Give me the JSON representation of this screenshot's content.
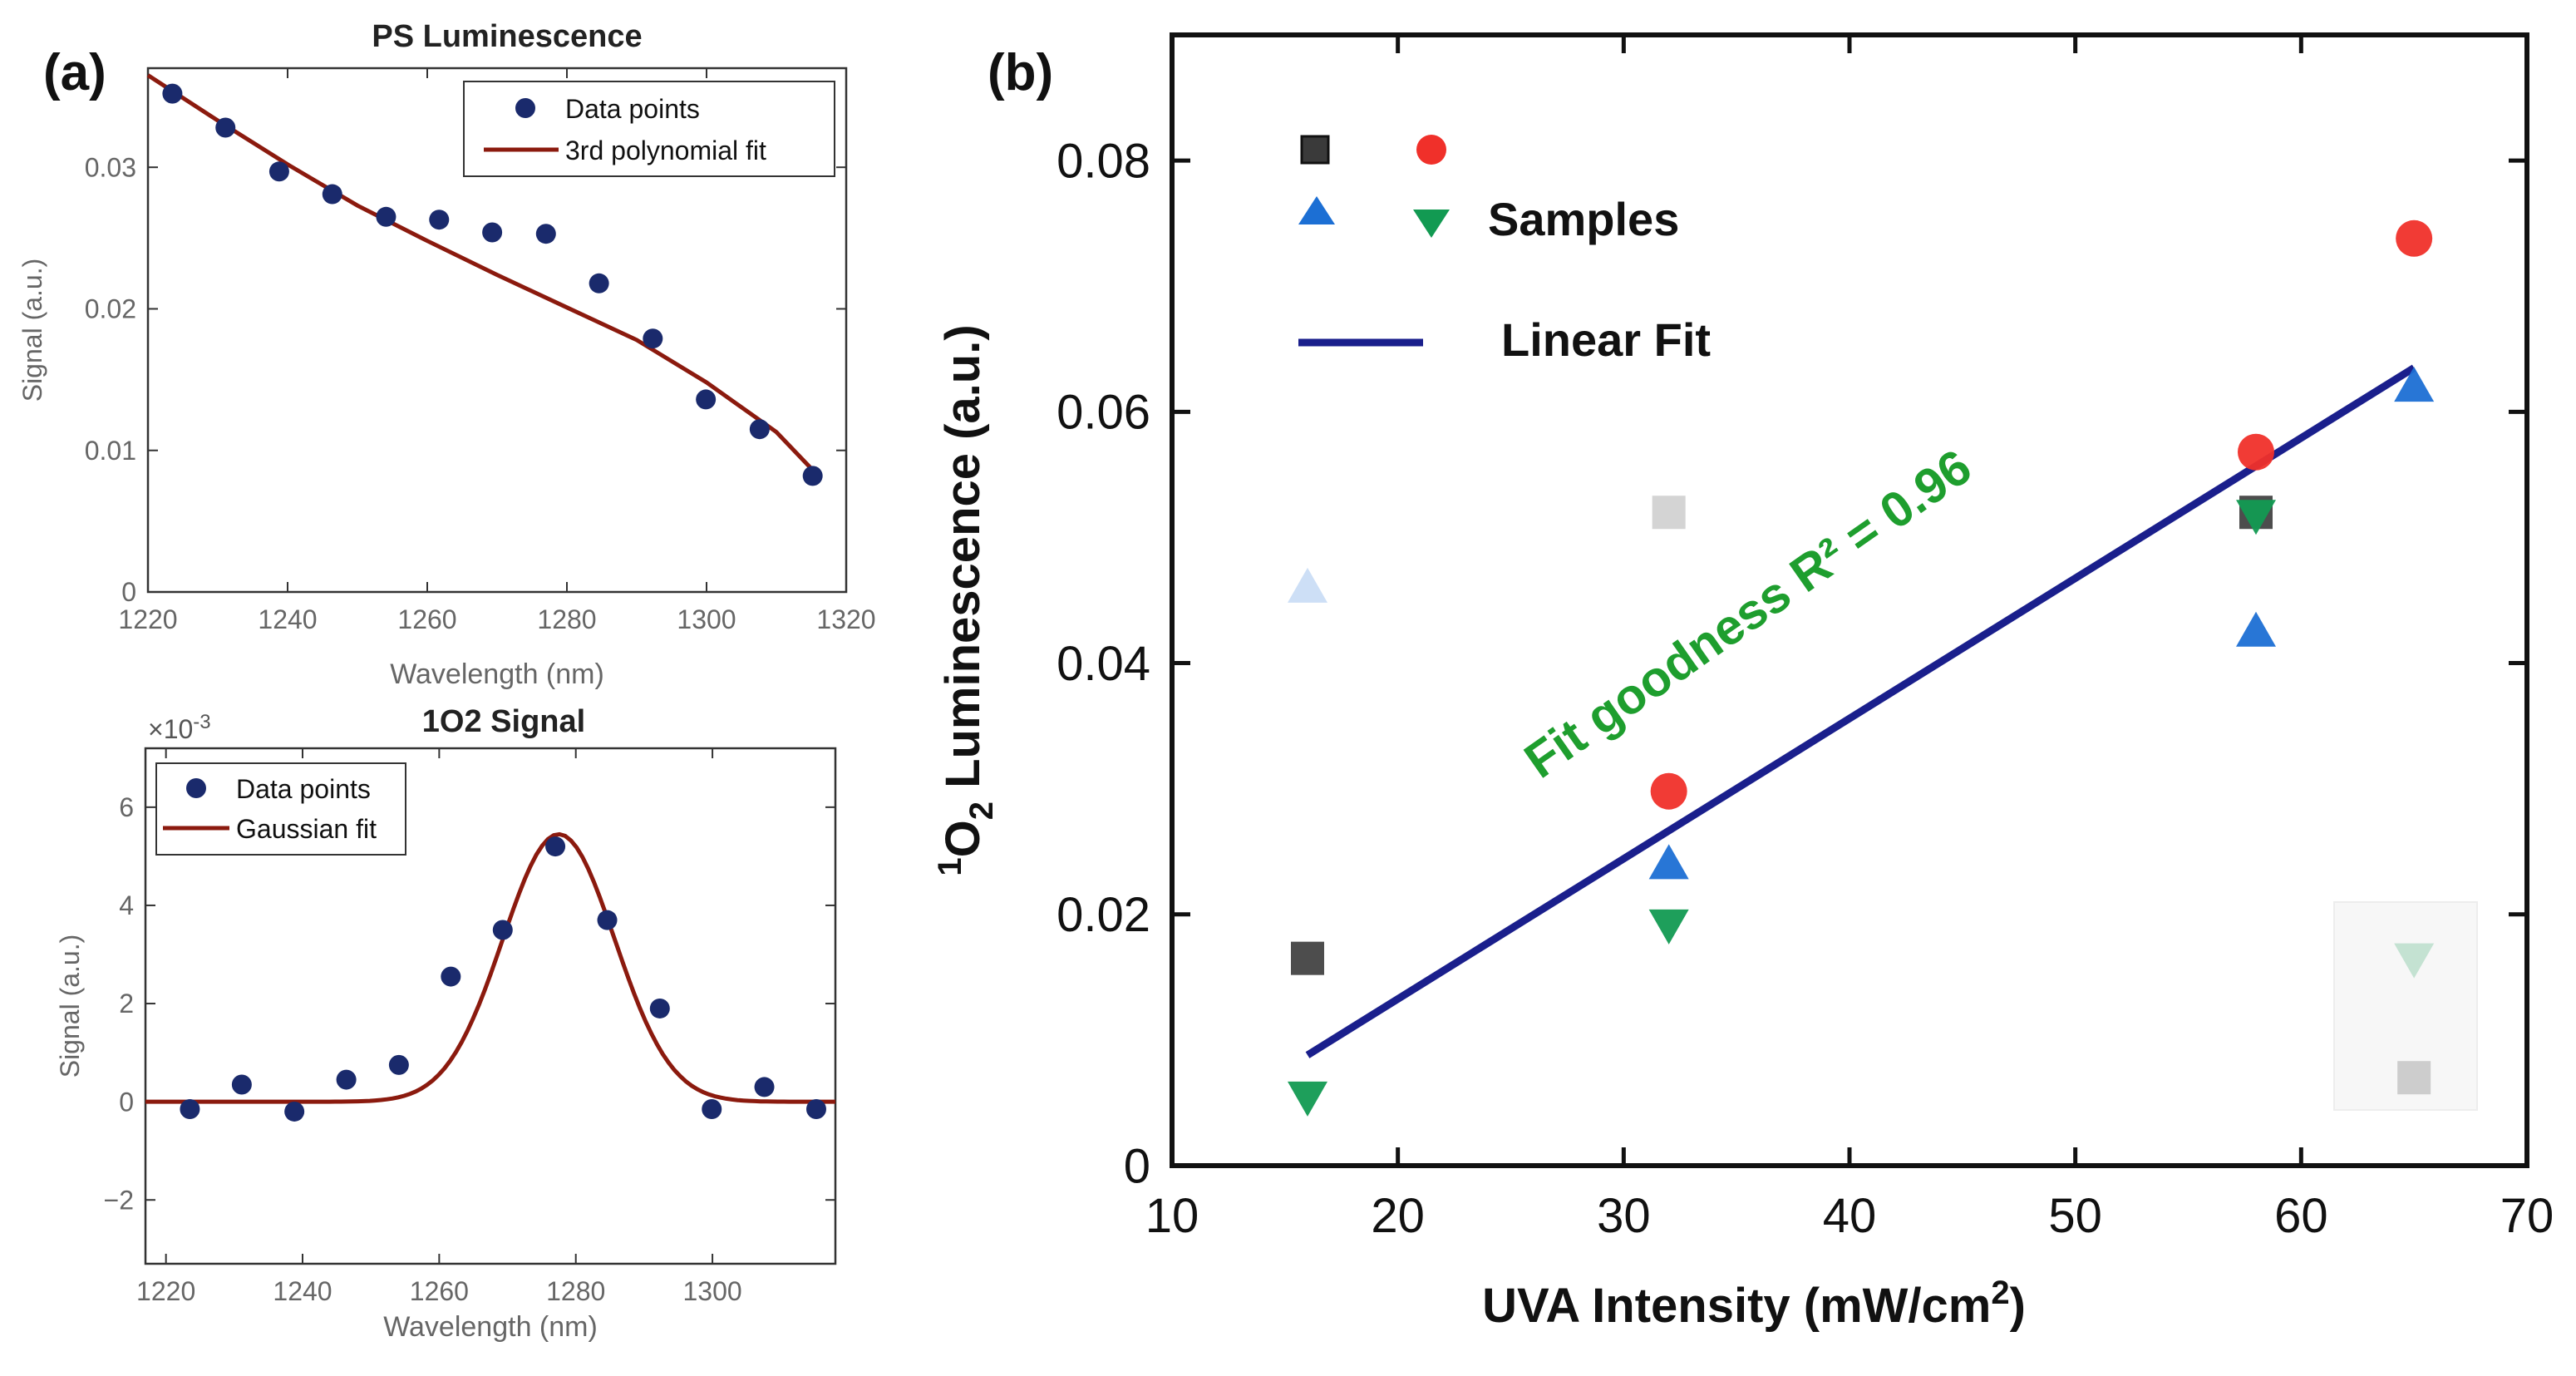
{
  "panel_labels": {
    "a": "(a)",
    "b": "(b)"
  },
  "chart_data": [
    {
      "id": "ps",
      "type": "scatter",
      "title": "PS Luminescence",
      "xlabel": "Wavelength (nm)",
      "ylabel": "Signal (a.u.)",
      "xlim": [
        1220,
        1320
      ],
      "ylim": [
        0,
        0.037
      ],
      "xticks": [
        1220,
        1240,
        1260,
        1280,
        1300,
        1320
      ],
      "yticks": [
        0,
        0.01,
        0.02,
        0.03
      ],
      "ytick_labels": [
        "0",
        "0.01",
        "0.02",
        "0.03"
      ],
      "legend_position": "top-right",
      "legend": [
        "Data points",
        "3rd polynomial fit"
      ],
      "points": {
        "x": [
          1223.5,
          1231.1,
          1238.8,
          1246.4,
          1254.1,
          1261.7,
          1269.3,
          1277.0,
          1284.6,
          1292.3,
          1299.9,
          1307.6,
          1315.2
        ],
        "y": [
          0.0352,
          0.0328,
          0.0297,
          0.0281,
          0.0265,
          0.0263,
          0.0254,
          0.0253,
          0.0218,
          0.0179,
          0.0136,
          0.0115,
          0.0082
        ]
      },
      "fit": {
        "x": [
          1220,
          1230,
          1240,
          1250,
          1260,
          1270,
          1280,
          1290,
          1300,
          1310,
          1316
        ],
        "y": [
          0.0365,
          0.0333,
          0.0302,
          0.0273,
          0.0248,
          0.0224,
          0.0201,
          0.0178,
          0.0148,
          0.0113,
          0.0082
        ]
      }
    },
    {
      "id": "o2",
      "type": "scatter",
      "title": "1O2 Signal",
      "xlabel": "Wavelength (nm)",
      "ylabel": "Signal (a.u.)",
      "exponent_label": "×10",
      "exponent_power": "-3",
      "xlim": [
        1217,
        1318
      ],
      "ylim": [
        -3.3,
        7.2
      ],
      "xticks": [
        1220,
        1240,
        1260,
        1280,
        1300
      ],
      "yticks": [
        -2,
        0,
        2,
        4,
        6
      ],
      "ytick_labels": [
        "−2",
        "0",
        "2",
        "4",
        "6"
      ],
      "legend_position": "top-left",
      "legend": [
        "Data points",
        "Gaussian fit"
      ],
      "points": {
        "x": [
          1223.5,
          1231.1,
          1238.8,
          1246.4,
          1254.1,
          1261.7,
          1269.3,
          1277.0,
          1284.6,
          1292.3,
          1299.9,
          1307.6,
          1315.2
        ],
        "y": [
          -0.15,
          0.35,
          -0.2,
          0.45,
          0.75,
          2.55,
          3.5,
          5.2,
          3.7,
          1.9,
          -0.15,
          0.3,
          -0.15
        ]
      },
      "fit": {
        "amplitude": 5.45,
        "center": 1277.5,
        "sigma": 8.2,
        "x_start": 1217,
        "x_end": 1318
      }
    },
    {
      "id": "uva",
      "type": "scatter",
      "xlabel": "UVA Intensity (mW/cm",
      "xlabel_sup": "2",
      "xlabel_end": ")",
      "ylabel_sup": "1",
      "ylabel_main": "O",
      "ylabel_sub": "2",
      "ylabel_rest": " Luminescence (a.u.)",
      "xlim": [
        10,
        70
      ],
      "ylim": [
        0,
        0.09
      ],
      "xticks": [
        10,
        20,
        30,
        40,
        50,
        60,
        70
      ],
      "yticks": [
        0,
        0.02,
        0.04,
        0.06,
        0.08
      ],
      "ytick_labels": [
        "0",
        "0.02",
        "0.04",
        "0.06",
        "0.08"
      ],
      "legend_position": "top-left",
      "legend": [
        "Samples",
        "Linear Fit"
      ],
      "annotation": "Fit goodness R² = 0.96",
      "colors": {
        "square": "#3a3a3a",
        "circle": "#f0302a",
        "up": "#1c6fd4",
        "down": "#129a52",
        "fit": "#1a1f8c",
        "annotation": "#1e9e2e"
      },
      "series": [
        {
          "name": "square",
          "marker": "square",
          "x": [
            16,
            58
          ],
          "y": [
            0.0165,
            0.052
          ]
        },
        {
          "name": "circle",
          "marker": "circle",
          "x": [
            32,
            58,
            65
          ],
          "y": [
            0.0298,
            0.0568,
            0.0738
          ]
        },
        {
          "name": "triangle-up",
          "marker": "triangle-up",
          "x": [
            32,
            58,
            65
          ],
          "y": [
            0.024,
            0.0425,
            0.062
          ]
        },
        {
          "name": "triangle-down",
          "marker": "triangle-down",
          "x": [
            16,
            32,
            58
          ],
          "y": [
            0.0055,
            0.0192,
            0.0518
          ]
        }
      ],
      "faded_points": [
        {
          "marker": "triangle-up",
          "x": 16,
          "y": 0.046
        },
        {
          "marker": "square",
          "x": 32,
          "y": 0.052
        },
        {
          "marker": "triangle-down",
          "x": 65,
          "y": 0.0165
        },
        {
          "marker": "square",
          "x": 65,
          "y": 0.007
        }
      ],
      "fit": {
        "x": [
          16,
          65
        ],
        "y": [
          0.0088,
          0.0635
        ]
      }
    }
  ]
}
